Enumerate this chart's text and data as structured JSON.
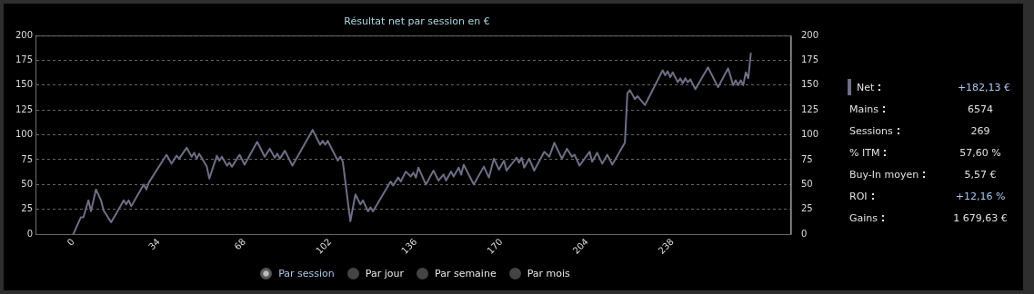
{
  "chart_data": [
    {
      "type": "line",
      "title": "Résultat net par session en €",
      "color": "#6e6e86",
      "marker": "none",
      "line_style": "solid",
      "grid": "y",
      "x": [
        0,
        3,
        4,
        6,
        7,
        9,
        11,
        12,
        15,
        18,
        20,
        21,
        22,
        23,
        25,
        28,
        29,
        30,
        37,
        39,
        41,
        42,
        45,
        47,
        48,
        49,
        50,
        53,
        54,
        57,
        58,
        59,
        61,
        62,
        63,
        66,
        68,
        73,
        76,
        78,
        80,
        81,
        82,
        84,
        87,
        95,
        98,
        99,
        100,
        101,
        105,
        106,
        107,
        110,
        112,
        114,
        115,
        117,
        118,
        119,
        126,
        127,
        129,
        130,
        132,
        134,
        135,
        136,
        137,
        140,
        143,
        145,
        147,
        148,
        150,
        151,
        153,
        154,
        155,
        159,
        163,
        165,
        167,
        169,
        171,
        172,
        176,
        177,
        178,
        179,
        181,
        183,
        187,
        189,
        191,
        194,
        196,
        198,
        199,
        201,
        205,
        206,
        208,
        210,
        212,
        214,
        219,
        220,
        221,
        223,
        224,
        227,
        234,
        235,
        236,
        237,
        238,
        240,
        241,
        242,
        243,
        244,
        245,
        247,
        252,
        256,
        260,
        262,
        263,
        264,
        265,
        266,
        267,
        268,
        269
      ],
      "values": [
        0,
        17,
        17,
        34,
        23,
        45,
        34,
        24,
        12,
        25,
        34,
        30,
        34,
        28,
        37,
        50,
        45,
        52,
        80,
        71,
        79,
        76,
        87,
        78,
        82,
        76,
        81,
        68,
        56,
        79,
        74,
        78,
        69,
        72,
        68,
        80,
        70,
        93,
        78,
        86,
        77,
        81,
        76,
        84,
        69,
        105,
        90,
        94,
        90,
        94,
        74,
        78,
        73,
        13,
        40,
        30,
        34,
        23,
        27,
        23,
        53,
        49,
        57,
        53,
        63,
        58,
        62,
        57,
        67,
        50,
        64,
        54,
        60,
        54,
        63,
        58,
        67,
        60,
        70,
        50,
        68,
        57,
        76,
        65,
        74,
        64,
        77,
        72,
        77,
        67,
        76,
        64,
        83,
        78,
        92,
        76,
        86,
        78,
        80,
        69,
        83,
        73,
        82,
        71,
        80,
        70,
        92,
        142,
        145,
        136,
        139,
        130,
        165,
        160,
        164,
        158,
        163,
        153,
        157,
        152,
        157,
        153,
        156,
        146,
        168,
        148,
        167,
        150,
        155,
        150,
        155,
        150,
        163,
        157,
        182
      ],
      "xlim": [
        -15,
        285
      ],
      "xticks": [
        0,
        34,
        68,
        102,
        136,
        170,
        204,
        238
      ],
      "ylim": [
        0,
        200
      ],
      "yticks": [
        0,
        25,
        50,
        75,
        100,
        125,
        150,
        175,
        200
      ],
      "y2lim": [
        0,
        200
      ],
      "y2ticks": [
        0,
        25,
        50,
        75,
        100,
        125,
        150,
        175,
        200
      ],
      "annotations": [
        "Par session",
        "Par jour",
        "Par semaine",
        "Par mois"
      ]
    },
    {
      "type": "other",
      "categories": [
        "Net",
        "Mains",
        "Sessions",
        "% ITM",
        "Buy-In moyen",
        "ROI",
        "Gains"
      ],
      "value_labels": [
        "+182,13 €",
        "6574",
        "269",
        "57,60 %",
        "5,57 €",
        "+12,16 %",
        "1 679,63 €"
      ],
      "colors": [
        "#a8c8f0",
        "#e0e0e0",
        "#e0e0e0",
        "#e0e0e0",
        "#e0e0e0",
        "#a8c8f0",
        "#e0e0e0"
      ]
    }
  ]
}
